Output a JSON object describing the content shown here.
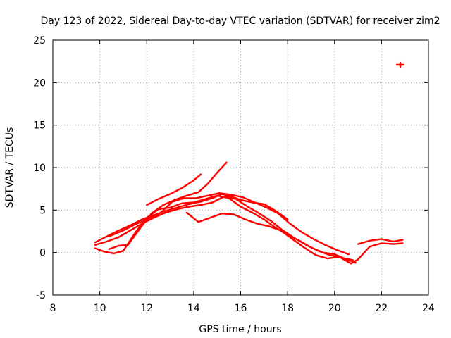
{
  "chart_data": {
    "type": "scatter",
    "title": "Day 123 of 2022, Sidereal Day-to-day VTEC variation (SDTVAR) for receiver zim2",
    "xlabel": "GPS time / hours",
    "ylabel": "SDTVAR / TECUs",
    "xlim": [
      8,
      24
    ],
    "ylim": [
      -5,
      25
    ],
    "xticks": [
      8,
      10,
      12,
      14,
      16,
      18,
      20,
      22,
      24
    ],
    "yticks": [
      -5,
      0,
      5,
      10,
      15,
      20,
      25
    ],
    "grid": true,
    "color": "#ff0000",
    "series": [
      {
        "name": "track-1",
        "points": [
          [
            9.8,
            1.2
          ],
          [
            10.3,
            1.9
          ],
          [
            10.8,
            2.6
          ],
          [
            11.3,
            3.2
          ],
          [
            11.8,
            3.9
          ],
          [
            12.2,
            4.3
          ],
          [
            12.8,
            4.9
          ],
          [
            13.3,
            5.3
          ],
          [
            13.8,
            5.7
          ],
          [
            14.3,
            6.0
          ],
          [
            14.8,
            6.4
          ],
          [
            15.2,
            6.9
          ],
          [
            15.6,
            6.6
          ],
          [
            16.0,
            6.2
          ],
          [
            16.5,
            5.9
          ],
          [
            17.0,
            5.7
          ],
          [
            17.5,
            4.9
          ],
          [
            18.0,
            3.9
          ]
        ]
      },
      {
        "name": "track-2",
        "points": [
          [
            9.8,
            0.9
          ],
          [
            10.3,
            1.3
          ],
          [
            10.8,
            1.8
          ],
          [
            11.3,
            2.6
          ],
          [
            11.8,
            3.4
          ],
          [
            12.3,
            4.1
          ],
          [
            12.8,
            4.7
          ],
          [
            13.3,
            5.1
          ],
          [
            13.8,
            5.4
          ],
          [
            14.3,
            5.6
          ],
          [
            14.8,
            5.9
          ],
          [
            15.3,
            6.6
          ],
          [
            15.8,
            6.3
          ],
          [
            16.3,
            5.4
          ],
          [
            16.8,
            4.6
          ],
          [
            17.3,
            3.7
          ],
          [
            17.8,
            2.6
          ],
          [
            18.3,
            1.7
          ],
          [
            18.8,
            0.9
          ],
          [
            19.3,
            0.2
          ],
          [
            19.8,
            -0.3
          ],
          [
            20.3,
            -0.6
          ],
          [
            20.8,
            -0.9
          ]
        ]
      },
      {
        "name": "track-3",
        "points": [
          [
            9.8,
            0.5
          ],
          [
            10.2,
            0.1
          ],
          [
            10.6,
            -0.1
          ],
          [
            11.0,
            0.2
          ],
          [
            11.5,
            2.3
          ],
          [
            12.0,
            4.1
          ],
          [
            12.5,
            5.1
          ],
          [
            13.0,
            5.3
          ],
          [
            13.5,
            5.8
          ],
          [
            14.0,
            5.9
          ],
          [
            14.5,
            6.3
          ],
          [
            15.0,
            6.7
          ],
          [
            15.5,
            6.4
          ],
          [
            16.0,
            5.4
          ],
          [
            16.5,
            4.7
          ],
          [
            17.0,
            3.9
          ],
          [
            17.5,
            2.9
          ],
          [
            18.0,
            2.1
          ],
          [
            18.5,
            1.4
          ],
          [
            19.0,
            0.6
          ],
          [
            19.5,
            0.0
          ],
          [
            20.0,
            -0.2
          ],
          [
            20.5,
            -0.8
          ],
          [
            20.9,
            -1.2
          ]
        ]
      },
      {
        "name": "track-4",
        "points": [
          [
            10.4,
            0.4
          ],
          [
            10.8,
            0.8
          ],
          [
            11.2,
            0.9
          ],
          [
            11.7,
            2.8
          ],
          [
            12.2,
            4.6
          ],
          [
            12.7,
            5.6
          ],
          [
            13.2,
            6.2
          ],
          [
            13.7,
            6.7
          ],
          [
            14.2,
            7.1
          ],
          [
            14.6,
            8.1
          ],
          [
            15.0,
            9.4
          ],
          [
            15.4,
            10.6
          ]
        ]
      },
      {
        "name": "track-5",
        "points": [
          [
            12.0,
            5.6
          ],
          [
            12.5,
            6.3
          ],
          [
            13.0,
            6.9
          ],
          [
            13.5,
            7.6
          ],
          [
            14.0,
            8.5
          ],
          [
            14.3,
            9.2
          ]
        ]
      },
      {
        "name": "track-6",
        "points": [
          [
            10.4,
            1.9
          ],
          [
            11.0,
            2.6
          ],
          [
            11.5,
            3.3
          ],
          [
            12.0,
            3.9
          ],
          [
            12.6,
            4.7
          ],
          [
            13.1,
            6.0
          ],
          [
            13.6,
            6.4
          ],
          [
            14.1,
            6.4
          ],
          [
            14.6,
            6.7
          ],
          [
            15.1,
            7.0
          ],
          [
            15.6,
            6.8
          ],
          [
            16.1,
            6.5
          ],
          [
            16.6,
            5.9
          ],
          [
            17.1,
            5.3
          ],
          [
            17.6,
            4.6
          ],
          [
            18.1,
            3.4
          ],
          [
            18.6,
            2.4
          ],
          [
            19.1,
            1.6
          ],
          [
            19.6,
            0.9
          ],
          [
            20.1,
            0.3
          ],
          [
            20.6,
            -0.2
          ]
        ]
      },
      {
        "name": "track-7",
        "points": [
          [
            13.7,
            4.7
          ],
          [
            14.2,
            3.6
          ],
          [
            14.7,
            4.1
          ],
          [
            15.2,
            4.6
          ],
          [
            15.7,
            4.5
          ],
          [
            16.2,
            3.9
          ],
          [
            16.7,
            3.4
          ],
          [
            17.2,
            3.1
          ],
          [
            17.7,
            2.6
          ],
          [
            18.2,
            1.6
          ],
          [
            18.7,
            0.6
          ],
          [
            19.2,
            -0.3
          ],
          [
            19.7,
            -0.7
          ],
          [
            20.2,
            -0.5
          ],
          [
            20.7,
            -1.3
          ],
          [
            21.0,
            -0.8
          ],
          [
            21.5,
            0.7
          ],
          [
            22.0,
            1.1
          ],
          [
            22.5,
            1.0
          ],
          [
            22.9,
            1.1
          ]
        ]
      },
      {
        "name": "track-8",
        "points": [
          [
            21.0,
            1.0
          ],
          [
            21.5,
            1.4
          ],
          [
            22.0,
            1.6
          ],
          [
            22.5,
            1.3
          ],
          [
            22.9,
            1.5
          ]
        ]
      },
      {
        "name": "isolated-point",
        "points": [
          [
            22.8,
            22.1
          ]
        ]
      }
    ]
  }
}
